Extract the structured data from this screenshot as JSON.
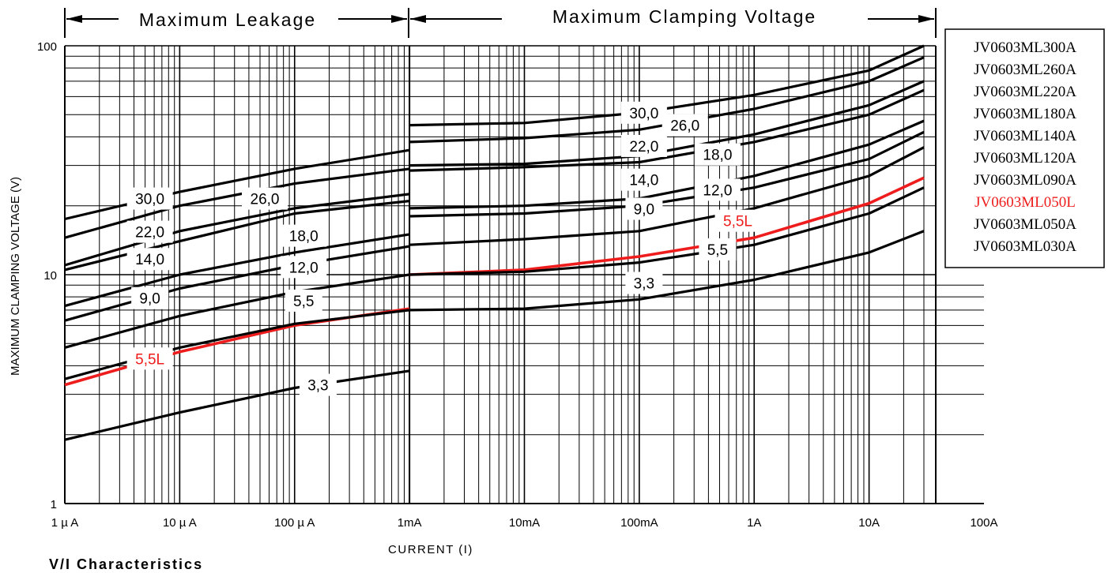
{
  "chart_data": {
    "type": "line",
    "x_scale": "log",
    "y_scale": "log",
    "xlabel": "CURRENT (I)",
    "ylabel": "MAXIMUM CLAMPING VOLTAGE (V)",
    "xlim": [
      1e-06,
      100
    ],
    "ylim": [
      1,
      100
    ],
    "x_ticks": [
      {
        "value": 1e-06,
        "label": "1 µ A"
      },
      {
        "value": 1e-05,
        "label": "10 µ A"
      },
      {
        "value": 0.0001,
        "label": "100 µ A"
      },
      {
        "value": 0.001,
        "label": "1mA"
      },
      {
        "value": 0.01,
        "label": "10mA"
      },
      {
        "value": 0.1,
        "label": "100mA"
      },
      {
        "value": 1,
        "label": "1A"
      },
      {
        "value": 10,
        "label": "10A"
      },
      {
        "value": 100,
        "label": "100A"
      }
    ],
    "y_ticks": [
      {
        "value": 1,
        "label": "1"
      },
      {
        "value": 10,
        "label": "10"
      },
      {
        "value": 100,
        "label": "100"
      }
    ],
    "grid": true,
    "region_labels": {
      "leakage": "Maximum Leakage",
      "clamping": "Maximum Clamping Voltage"
    },
    "region_divider_x": 0.001,
    "legend_position": "right",
    "legend": [
      {
        "name": "JV0603ML300A",
        "color": "#000000"
      },
      {
        "name": "JV0603ML260A",
        "color": "#000000"
      },
      {
        "name": "JV0603ML220A",
        "color": "#000000"
      },
      {
        "name": "JV0603ML180A",
        "color": "#000000"
      },
      {
        "name": "JV0603ML140A",
        "color": "#000000"
      },
      {
        "name": "JV0603ML120A",
        "color": "#000000"
      },
      {
        "name": "JV0603ML090A",
        "color": "#000000"
      },
      {
        "name": "JV0603ML050L",
        "color": "#ee1c1c"
      },
      {
        "name": "JV0603ML050A",
        "color": "#000000"
      },
      {
        "name": "JV0603ML030A",
        "color": "#000000"
      }
    ],
    "series": [
      {
        "label": "30,0",
        "color": "#000000",
        "leakage_x": [
          1e-06,
          1e-05,
          0.0001,
          0.001
        ],
        "leakage_y": [
          17.5,
          23,
          29,
          35
        ],
        "clamping_x": [
          0.001,
          0.01,
          0.1,
          1,
          10,
          30
        ],
        "clamping_y": [
          45,
          46,
          51,
          61,
          78,
          100
        ]
      },
      {
        "label": "26,0",
        "color": "#000000",
        "leakage_x": [
          1e-06,
          1e-05,
          0.0001,
          0.001
        ],
        "leakage_y": [
          14.5,
          20,
          25,
          29
        ],
        "clamping_x": [
          0.001,
          0.01,
          0.1,
          1,
          10,
          30
        ],
        "clamping_y": [
          38,
          39.5,
          43,
          53,
          70,
          89
        ]
      },
      {
        "label": "22,0",
        "color": "#000000",
        "leakage_x": [
          1e-06,
          1e-05,
          0.0001,
          0.001
        ],
        "leakage_y": [
          11,
          15.5,
          19.5,
          22.5
        ],
        "clamping_x": [
          0.001,
          0.01,
          0.1,
          1,
          10,
          30
        ],
        "clamping_y": [
          30,
          30.5,
          33,
          41,
          55,
          70
        ]
      },
      {
        "label": "18,0",
        "color": "#000000",
        "leakage_x": [
          1e-06,
          1e-05,
          0.0001,
          0.001
        ],
        "leakage_y": [
          10.5,
          14,
          18.5,
          21
        ],
        "clamping_x": [
          0.001,
          0.01,
          0.1,
          1,
          10,
          30
        ],
        "clamping_y": [
          28.5,
          29.5,
          31,
          38,
          50,
          64
        ]
      },
      {
        "label": "14,0",
        "color": "#000000",
        "leakage_x": [
          1e-06,
          1e-05,
          0.0001,
          0.001
        ],
        "leakage_y": [
          7.3,
          10,
          12.5,
          15
        ],
        "clamping_x": [
          0.001,
          0.01,
          0.1,
          1,
          10,
          30
        ],
        "clamping_y": [
          19.5,
          20,
          21.5,
          27,
          37,
          47
        ]
      },
      {
        "label": "12,0",
        "color": "#000000",
        "leakage_x": [
          1e-06,
          1e-05,
          0.0001,
          0.001
        ],
        "leakage_y": [
          6.3,
          8.7,
          11,
          13.3
        ],
        "clamping_x": [
          0.001,
          0.01,
          0.1,
          1,
          10,
          30
        ],
        "clamping_y": [
          18,
          18.5,
          20,
          24,
          32,
          42
        ]
      },
      {
        "label": "9,0",
        "color": "#000000",
        "leakage_x": [
          1e-06,
          1e-05,
          0.0001,
          0.001
        ],
        "leakage_y": [
          4.8,
          6.6,
          8.4,
          10
        ],
        "clamping_x": [
          0.001,
          0.01,
          0.1,
          1,
          10,
          30
        ],
        "clamping_y": [
          13.5,
          14.3,
          15.5,
          19.5,
          27,
          36
        ]
      },
      {
        "label": "5,5L",
        "color": "#ee1c1c",
        "leakage_x": [
          1e-06,
          1e-05,
          0.0001,
          0.001
        ],
        "leakage_y": [
          3.3,
          4.6,
          6,
          7.1
        ],
        "clamping_x": [
          0.001,
          0.01,
          0.1,
          1,
          10,
          30
        ],
        "clamping_y": [
          10,
          10.5,
          12,
          14.5,
          20.5,
          26.5
        ]
      },
      {
        "label": "5,5",
        "color": "#000000",
        "leakage_x": [
          1e-06,
          1e-05,
          0.0001,
          0.001
        ],
        "leakage_y": [
          3.5,
          4.8,
          6.1,
          7
        ],
        "clamping_x": [
          0.001,
          0.01,
          0.1,
          1,
          10,
          30
        ],
        "clamping_y": [
          10,
          10.3,
          11.3,
          13.5,
          18.5,
          24
        ]
      },
      {
        "label": "3,3",
        "color": "#000000",
        "leakage_x": [
          1e-06,
          1e-05,
          0.0001,
          0.001
        ],
        "leakage_y": [
          1.9,
          2.5,
          3.2,
          3.8
        ],
        "clamping_x": [
          0.001,
          0.01,
          0.1,
          1,
          10,
          30
        ],
        "clamping_y": [
          7,
          7.1,
          7.8,
          9.5,
          12.5,
          15.5
        ]
      }
    ],
    "value_tags": [
      {
        "text": "30,0",
        "x": 5.5e-06,
        "y": 21.5,
        "color": "#000000"
      },
      {
        "text": "26,0",
        "x": 5.5e-05,
        "y": 21.5,
        "color": "#000000"
      },
      {
        "text": "22,0",
        "x": 5.5e-06,
        "y": 15.4,
        "color": "#000000"
      },
      {
        "text": "18,0",
        "x": 0.00012,
        "y": 14.8,
        "color": "#000000"
      },
      {
        "text": "14,0",
        "x": 5.5e-06,
        "y": 11.7,
        "color": "#000000"
      },
      {
        "text": "12,0",
        "x": 0.00012,
        "y": 10.8,
        "color": "#000000"
      },
      {
        "text": "9,0",
        "x": 5.5e-06,
        "y": 7.9,
        "color": "#000000"
      },
      {
        "text": "5,5",
        "x": 0.00012,
        "y": 7.7,
        "color": "#000000"
      },
      {
        "text": "5,5L",
        "x": 5.5e-06,
        "y": 4.3,
        "color": "#ee1c1c"
      },
      {
        "text": "3,3",
        "x": 0.00016,
        "y": 3.3,
        "color": "#000000"
      },
      {
        "text": "30,0",
        "x": 0.11,
        "y": 51,
        "color": "#000000"
      },
      {
        "text": "26,0",
        "x": 0.25,
        "y": 45,
        "color": "#000000"
      },
      {
        "text": "22,0",
        "x": 0.11,
        "y": 36.5,
        "color": "#000000"
      },
      {
        "text": "18,0",
        "x": 0.48,
        "y": 33.5,
        "color": "#000000"
      },
      {
        "text": "14,0",
        "x": 0.11,
        "y": 26,
        "color": "#000000"
      },
      {
        "text": "12,0",
        "x": 0.48,
        "y": 23.5,
        "color": "#000000"
      },
      {
        "text": "9,0",
        "x": 0.11,
        "y": 19.4,
        "color": "#000000"
      },
      {
        "text": "5,5L",
        "x": 0.72,
        "y": 17.2,
        "color": "#ee1c1c"
      },
      {
        "text": "5,5",
        "x": 0.48,
        "y": 12.9,
        "color": "#000000"
      },
      {
        "text": "3,3",
        "x": 0.11,
        "y": 9.2,
        "color": "#000000"
      }
    ],
    "footer_title": "V/I Characteristics"
  }
}
